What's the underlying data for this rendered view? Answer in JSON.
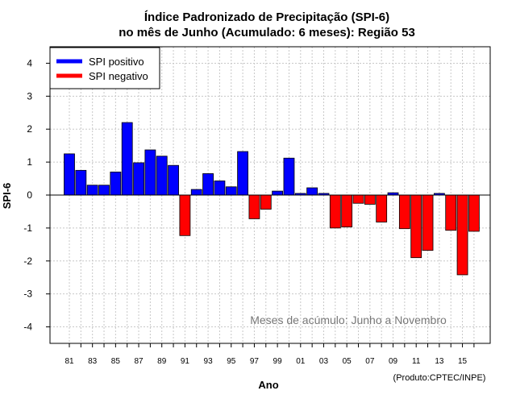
{
  "chart_data": {
    "type": "bar",
    "title_line1": "Índice Padronizado de Precipitação (SPI-6)",
    "title_line2": "no mês de Junho (Acumulado: 6 meses): Região 53",
    "xlabel": "Ano",
    "ylabel": "SPI-6",
    "ylim": [
      -4.5,
      4.5
    ],
    "yticks": [
      -4,
      -3,
      -2,
      -1,
      0,
      1,
      2,
      3,
      4
    ],
    "xtick_labels": [
      "81",
      "83",
      "85",
      "87",
      "89",
      "91",
      "93",
      "95",
      "97",
      "99",
      "01",
      "03",
      "05",
      "07",
      "09",
      "11",
      "13",
      "15"
    ],
    "categories": [
      "1981",
      "1982",
      "1983",
      "1984",
      "1985",
      "1986",
      "1987",
      "1988",
      "1989",
      "1990",
      "1991",
      "1992",
      "1993",
      "1994",
      "1995",
      "1996",
      "1997",
      "1998",
      "1999",
      "2000",
      "2001",
      "2002",
      "2003",
      "2004",
      "2005",
      "2006",
      "2007",
      "2008",
      "2009",
      "2010",
      "2011",
      "2012",
      "2013",
      "2014",
      "2015",
      "2016"
    ],
    "values": [
      1.25,
      0.75,
      0.3,
      0.3,
      0.7,
      2.2,
      0.98,
      1.37,
      1.18,
      0.9,
      -1.23,
      0.17,
      0.65,
      0.43,
      0.25,
      1.32,
      -0.72,
      -0.43,
      0.12,
      1.12,
      0.05,
      0.22,
      0.05,
      -1.0,
      -0.97,
      -0.25,
      -0.28,
      -0.82,
      0.07,
      -1.02,
      -1.9,
      -1.68,
      0.05,
      -1.07,
      -2.42,
      -1.1
    ],
    "legend": [
      {
        "label": "SPI positivo",
        "color": "#0000ff"
      },
      {
        "label": "SPI negativo",
        "color": "#ff0000"
      }
    ],
    "annotation": "Meses de acúmulo: Junho a Novembro",
    "credit": "(Produto:CPTEC/INPE)",
    "grid": true,
    "legend_position": "top-left",
    "colors": {
      "positive": "#0000ff",
      "negative": "#ff0000",
      "grid": "#c8c8c8"
    }
  }
}
